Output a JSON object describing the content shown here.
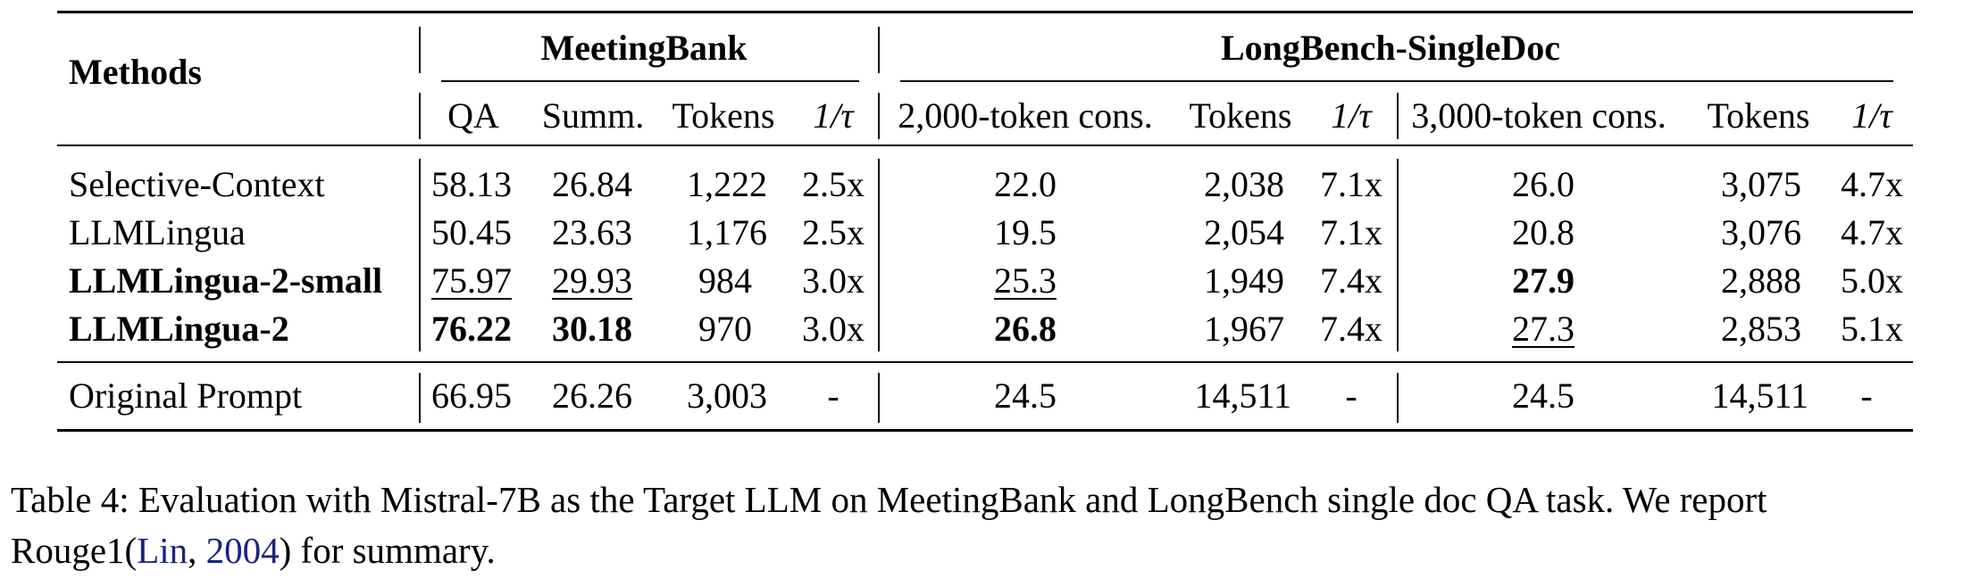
{
  "table": {
    "header": {
      "methods": "Methods",
      "group_meetingbank": "MeetingBank",
      "group_longbench": "LongBench-SingleDoc",
      "mb_columns": [
        "QA",
        "Summ.",
        "Tokens",
        "1/τ"
      ],
      "lb_columns": [
        "2,000-token cons.",
        "Tokens",
        "1/τ",
        "3,000-token cons.",
        "Tokens",
        "1/τ"
      ]
    },
    "rows": [
      {
        "method": "Selective-Context",
        "bold": false,
        "cells": [
          "58.13",
          "26.84",
          "1,222",
          "2.5x",
          "22.0",
          "2,038",
          "7.1x",
          "26.0",
          "3,075",
          "4.7x"
        ]
      },
      {
        "method": "LLMLingua",
        "bold": false,
        "cells": [
          "50.45",
          "23.63",
          "1,176",
          "2.5x",
          "19.5",
          "2,054",
          "7.1x",
          "20.8",
          "3,076",
          "4.7x"
        ]
      },
      {
        "method": "LLMLingua-2-small",
        "bold": true,
        "cells": [
          "75.97",
          "29.93",
          "984",
          "3.0x",
          "25.3",
          "1,949",
          "7.4x",
          "27.9",
          "2,888",
          "5.0x"
        ]
      },
      {
        "method": "LLMLingua-2",
        "bold": true,
        "cells": [
          "76.22",
          "30.18",
          "970",
          "3.0x",
          "26.8",
          "1,967",
          "7.4x",
          "27.3",
          "2,853",
          "5.1x"
        ]
      },
      {
        "method": "Original Prompt",
        "bold": false,
        "cells": [
          "66.95",
          "26.26",
          "3,003",
          "-",
          "24.5",
          "14,511",
          "-",
          "24.5",
          "14,511",
          "-"
        ]
      }
    ]
  },
  "caption": {
    "text_before": "Table 4: Evaluation with Mistral-7B as the Target LLM on MeetingBank and LongBench single doc QA task. We report Rouge1(",
    "cite_author": "Lin",
    "cite_sep": ", ",
    "cite_year": "2004",
    "text_after": ") for summary."
  }
}
